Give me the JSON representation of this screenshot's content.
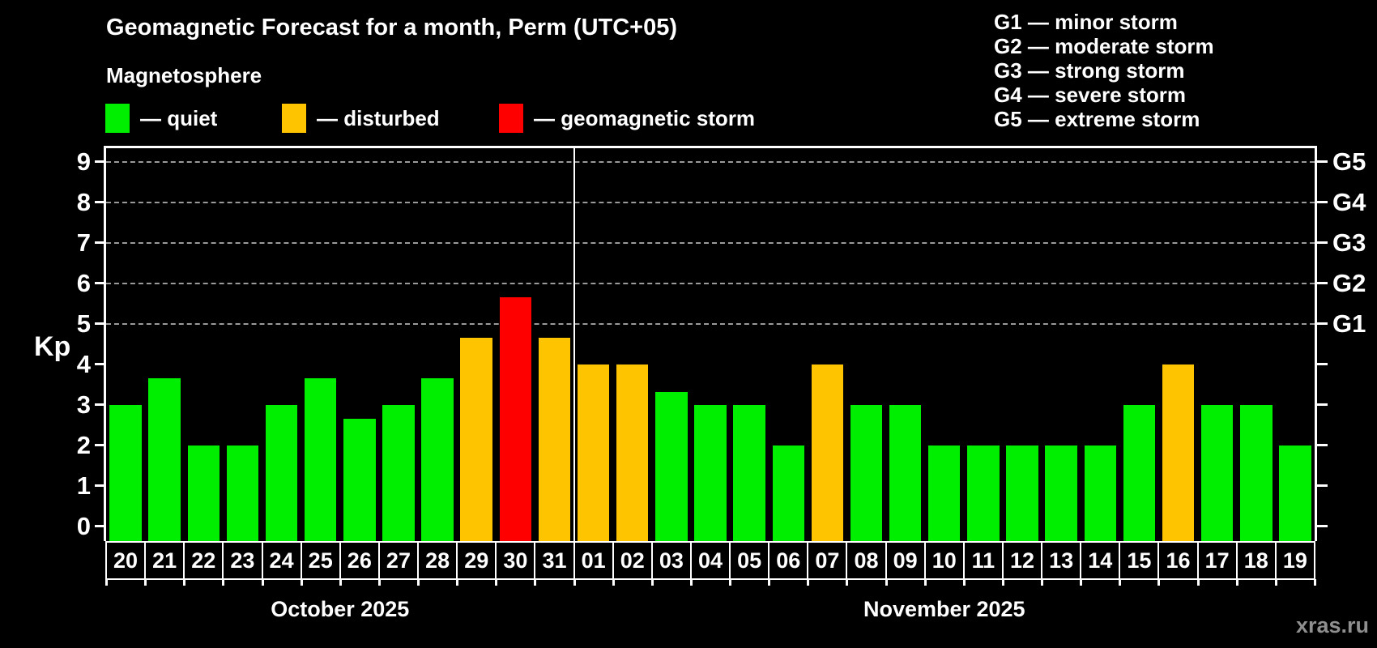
{
  "title": "Geomagnetic Forecast for a month, Perm (UTC+05)",
  "subtitle": "Magnetosphere",
  "watermark": "xras.ru",
  "legend": {
    "items": [
      {
        "key": "quiet",
        "label": "— quiet",
        "color": "#00ee00"
      },
      {
        "key": "disturbed",
        "label": "— disturbed",
        "color": "#ffc400"
      },
      {
        "key": "storm",
        "label": "— geomagnetic storm",
        "color": "#ff0000"
      }
    ]
  },
  "g_legend": [
    "G1 — minor storm",
    "G2 — moderate storm",
    "G3 — strong storm",
    "G4 — severe storm",
    "G5 — extreme storm"
  ],
  "chart_data": {
    "type": "bar",
    "title": "Geomagnetic Forecast for a month, Perm (UTC+05)",
    "xlabel": "",
    "ylabel": "Kp",
    "ylim": [
      0,
      9
    ],
    "yticks": [
      0,
      1,
      2,
      3,
      4,
      5,
      6,
      7,
      8,
      9
    ],
    "grid_levels": [
      5,
      6,
      7,
      8,
      9
    ],
    "grid": "dashed-on-storm-levels-only",
    "legend_position": "top-left",
    "right_axis": [
      {
        "kp": 5,
        "label": "G1"
      },
      {
        "kp": 6,
        "label": "G2"
      },
      {
        "kp": 7,
        "label": "G3"
      },
      {
        "kp": 8,
        "label": "G4"
      },
      {
        "kp": 9,
        "label": "G5"
      }
    ],
    "status_colors": {
      "quiet": "#00ee00",
      "disturbed": "#ffc400",
      "storm": "#ff0000"
    },
    "months": [
      {
        "label": "October 2025",
        "days": [
          {
            "day": "20",
            "kp": 3.0,
            "status": "quiet"
          },
          {
            "day": "21",
            "kp": 3.67,
            "status": "quiet"
          },
          {
            "day": "22",
            "kp": 2.0,
            "status": "quiet"
          },
          {
            "day": "23",
            "kp": 2.0,
            "status": "quiet"
          },
          {
            "day": "24",
            "kp": 3.0,
            "status": "quiet"
          },
          {
            "day": "25",
            "kp": 3.67,
            "status": "quiet"
          },
          {
            "day": "26",
            "kp": 2.67,
            "status": "quiet"
          },
          {
            "day": "27",
            "kp": 3.0,
            "status": "quiet"
          },
          {
            "day": "28",
            "kp": 3.67,
            "status": "quiet"
          },
          {
            "day": "29",
            "kp": 4.67,
            "status": "disturbed"
          },
          {
            "day": "30",
            "kp": 5.67,
            "status": "storm"
          },
          {
            "day": "31",
            "kp": 4.67,
            "status": "disturbed"
          }
        ]
      },
      {
        "label": "November 2025",
        "days": [
          {
            "day": "01",
            "kp": 4.0,
            "status": "disturbed"
          },
          {
            "day": "02",
            "kp": 4.0,
            "status": "disturbed"
          },
          {
            "day": "03",
            "kp": 3.33,
            "status": "quiet"
          },
          {
            "day": "04",
            "kp": 3.0,
            "status": "quiet"
          },
          {
            "day": "05",
            "kp": 3.0,
            "status": "quiet"
          },
          {
            "day": "06",
            "kp": 2.0,
            "status": "quiet"
          },
          {
            "day": "07",
            "kp": 4.0,
            "status": "disturbed"
          },
          {
            "day": "08",
            "kp": 3.0,
            "status": "quiet"
          },
          {
            "day": "09",
            "kp": 3.0,
            "status": "quiet"
          },
          {
            "day": "10",
            "kp": 2.0,
            "status": "quiet"
          },
          {
            "day": "11",
            "kp": 2.0,
            "status": "quiet"
          },
          {
            "day": "12",
            "kp": 2.0,
            "status": "quiet"
          },
          {
            "day": "13",
            "kp": 2.0,
            "status": "quiet"
          },
          {
            "day": "14",
            "kp": 2.0,
            "status": "quiet"
          },
          {
            "day": "15",
            "kp": 3.0,
            "status": "quiet"
          },
          {
            "day": "16",
            "kp": 4.0,
            "status": "disturbed"
          },
          {
            "day": "17",
            "kp": 3.0,
            "status": "quiet"
          },
          {
            "day": "18",
            "kp": 3.0,
            "status": "quiet"
          },
          {
            "day": "19",
            "kp": 2.0,
            "status": "quiet"
          }
        ]
      }
    ]
  }
}
